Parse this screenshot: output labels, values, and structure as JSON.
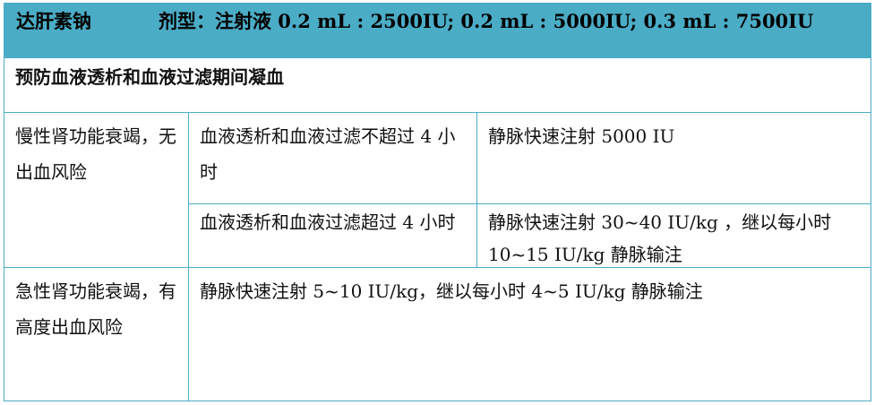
{
  "header": {
    "drug": "达肝素钠",
    "formulation": "剂型：注射液 0.2 mL : 2500IU; 0.2 mL : 5000IU; 0.3 mL : 7500IU"
  },
  "section_title": "预防血液透析和血液过滤期间凝血",
  "rows": [
    {
      "condition": "慢性肾功能衰竭，无出血风险",
      "sub": [
        {
          "situation": "血液透析和血液过滤不超过 4 小时",
          "dose": "静脉快速注射 5000 IU"
        },
        {
          "situation": "血液透析和血液过滤超过 4 小时",
          "dose": "静脉快速注射 30~40 IU/kg ，继以每小时 10~15 IU/kg 静脉输注"
        }
      ]
    },
    {
      "condition": "急性肾功能衰竭，有高度出血风险",
      "dose": "静脉快速注射 5~10 IU/kg，继以每小时 4~5 IU/kg 静脉输注"
    }
  ],
  "colors": {
    "header_bg": "#4bacc6",
    "border": "#4bacc6"
  }
}
